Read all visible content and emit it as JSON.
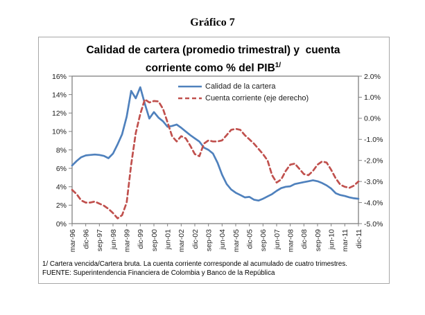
{
  "page_title": "Gráfico 7",
  "chart": {
    "title_line1": "Calidad de cartera (promedio trimestral) y  cuenta",
    "title_line2_pre": "corriente como % del PIB",
    "title_superscript": "1/",
    "footnote1": "1/ Cartera vencida/Cartera bruta. La cuenta corriente corresponde al acumulado de cuatro trimestres.",
    "footnote2": "FUENTE: Superintendencia Financiera de Colombia y Banco de la República"
  },
  "chart_data": {
    "type": "line",
    "title": "Calidad de cartera (promedio trimestral) y cuenta corriente como % del PIB 1/",
    "grid": false,
    "legend_position": "top-center-inside",
    "x_tick_step": 3,
    "x": [
      "mar-96",
      "jun-96",
      "sep-96",
      "dic-96",
      "mar-97",
      "jun-97",
      "sep-97",
      "dic-97",
      "mar-98",
      "jun-98",
      "sep-98",
      "dic-98",
      "mar-99",
      "jun-99",
      "sep-99",
      "dic-99",
      "mar-00",
      "jun-00",
      "sep-00",
      "dic-00",
      "mar-01",
      "jun-01",
      "sep-01",
      "dic-01",
      "mar-02",
      "jun-02",
      "sep-02",
      "dic-02",
      "mar-03",
      "jun-03",
      "sep-03",
      "dic-03",
      "mar-04",
      "jun-04",
      "sep-04",
      "dic-04",
      "mar-05",
      "jun-05",
      "sep-05",
      "dic-05",
      "mar-06",
      "jun-06",
      "sep-06",
      "dic-06",
      "mar-07",
      "jun-07",
      "sep-07",
      "dic-07",
      "mar-08",
      "jun-08",
      "sep-08",
      "dic-08",
      "mar-09",
      "jun-09",
      "sep-09",
      "dic-09",
      "mar-10",
      "jun-10",
      "sep-10",
      "dic-10",
      "mar-11",
      "jun-11",
      "sep-11",
      "dic-11"
    ],
    "left_axis": {
      "min": 0,
      "max": 16,
      "ticks": [
        "16%",
        "14%",
        "12%",
        "10%",
        "8%",
        "6%",
        "4%",
        "2%",
        "0%"
      ]
    },
    "right_axis": {
      "min": -5,
      "max": 2,
      "ticks": [
        "2.0%",
        "1.0%",
        "0.0%",
        "-1.0%",
        "-2.0%",
        "-3.0%",
        "-4.0%",
        "-5.0%"
      ]
    },
    "axis_color": "#808080",
    "series": [
      {
        "name": "Calidad de la cartera",
        "axis": "left",
        "style": "solid",
        "color": "#4F81BD",
        "values": [
          6.3,
          6.8,
          7.2,
          7.4,
          7.45,
          7.5,
          7.45,
          7.35,
          7.1,
          7.6,
          8.6,
          9.7,
          11.6,
          14.4,
          13.6,
          14.8,
          13.0,
          11.4,
          12.1,
          11.5,
          11.1,
          10.5,
          10.6,
          10.75,
          10.4,
          10.0,
          9.6,
          9.25,
          8.9,
          8.25,
          8.0,
          7.6,
          6.6,
          5.3,
          4.3,
          3.7,
          3.35,
          3.1,
          2.85,
          2.9,
          2.6,
          2.5,
          2.7,
          2.95,
          3.2,
          3.55,
          3.85,
          4.0,
          4.05,
          4.3,
          4.4,
          4.5,
          4.6,
          4.7,
          4.6,
          4.4,
          4.15,
          3.8,
          3.3,
          3.1,
          3.0,
          2.85,
          2.75,
          2.7
        ]
      },
      {
        "name": "Cuenta corriente (eje derecho)",
        "axis": "right",
        "style": "dashed",
        "color": "#C0504D",
        "values": [
          -3.4,
          -3.6,
          -3.9,
          -4.0,
          -4.0,
          -3.95,
          -4.05,
          -4.15,
          -4.3,
          -4.5,
          -4.75,
          -4.6,
          -4.0,
          -2.2,
          -0.7,
          0.2,
          0.9,
          0.75,
          0.82,
          0.8,
          0.45,
          -0.2,
          -0.85,
          -1.1,
          -0.85,
          -0.95,
          -1.3,
          -1.7,
          -1.8,
          -1.2,
          -1.05,
          -1.1,
          -1.1,
          -1.05,
          -0.8,
          -0.55,
          -0.5,
          -0.55,
          -0.8,
          -1.0,
          -1.2,
          -1.45,
          -1.7,
          -2.0,
          -2.7,
          -3.05,
          -2.9,
          -2.5,
          -2.2,
          -2.15,
          -2.4,
          -2.65,
          -2.7,
          -2.5,
          -2.2,
          -2.05,
          -2.1,
          -2.45,
          -2.85,
          -3.15,
          -3.25,
          -3.3,
          -3.2,
          -3.0
        ]
      }
    ]
  }
}
